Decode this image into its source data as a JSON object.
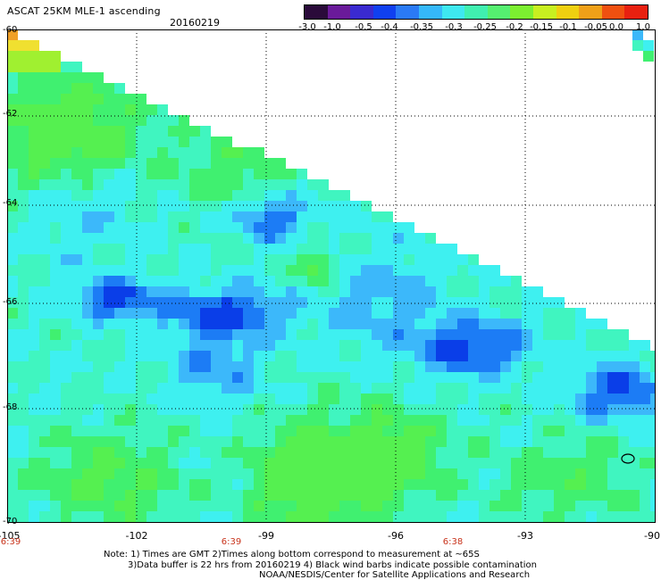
{
  "header": {
    "title": "ASCAT 25KM MLE-1 ascending",
    "date": "20160219"
  },
  "colorbar": {
    "labels": [
      "-3.0",
      "-1.0",
      "-0.5",
      "-0.4",
      "-0.35",
      "-0.3",
      "-0.25",
      "-0.2",
      "-0.15",
      "-0.1",
      "-0.05",
      "0.0",
      "1.0"
    ],
    "colors": [
      "#2a0a3a",
      "#6a1a9a",
      "#3a2ad0",
      "#1040f0",
      "#2a7af5",
      "#35b8fa",
      "#3ee8f0",
      "#40f0b0",
      "#55f070",
      "#7cf030",
      "#c8f020",
      "#f0d010",
      "#f0a018",
      "#f05010",
      "#e82010"
    ]
  },
  "map": {
    "lat_labels": [
      "-60",
      "-62",
      "-64",
      "-66",
      "-68",
      "-70"
    ],
    "lon_labels": [
      "-105",
      "-102",
      "-99",
      "-96",
      "-93",
      "-90"
    ],
    "time_labels": [
      "6:39",
      "6:39",
      "6:38"
    ],
    "palette": {
      "deep_blue": "#0a3ee8",
      "blue": "#1c7cf5",
      "light_blue": "#3cb8fa",
      "cyan": "#3ef0f0",
      "aqua": "#40f5c0",
      "green": "#40f070",
      "bright_green": "#55f050",
      "yellow_green": "#a0f030",
      "yellow": "#f0e030",
      "orange": "#f0a028"
    }
  },
  "footer": {
    "note_line1": "Note: 1) Times are GMT 2)Times along bottom correspond to measurement at ~65S",
    "note_line2": "3)Data buffer is 22 hrs from 20160219 4) Black wind barbs indicate possible contamination",
    "credit": "NOAA/NESDIS/Center for Satellite Applications and Research"
  }
}
